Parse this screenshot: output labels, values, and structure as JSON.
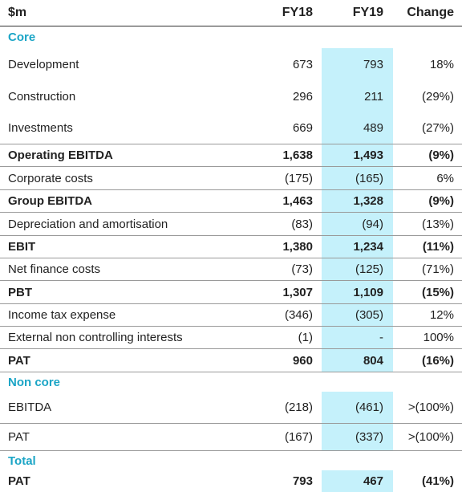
{
  "table": {
    "header": [
      "$m",
      "FY18",
      "FY19",
      "Change"
    ],
    "sections": [
      {
        "title": "Core",
        "rows": [
          {
            "cells": [
              "Development",
              "673",
              "793",
              "18%"
            ],
            "bold": false
          },
          {
            "cells": [
              "Construction",
              "296",
              "211",
              "(29%)"
            ],
            "bold": false
          },
          {
            "cells": [
              "Investments",
              "669",
              "489",
              "(27%)"
            ],
            "bold": false
          },
          {
            "cells": [
              "Operating EBITDA",
              "1,638",
              "1,493",
              "(9%)"
            ],
            "bold": true
          },
          {
            "cells": [
              "Corporate costs",
              "(175)",
              "(165)",
              "6%"
            ],
            "bold": false
          },
          {
            "cells": [
              "Group EBITDA",
              "1,463",
              "1,328",
              "(9%)"
            ],
            "bold": true
          },
          {
            "cells": [
              "Depreciation and amortisation",
              "(83)",
              "(94)",
              "(13%)"
            ],
            "bold": false
          },
          {
            "cells": [
              "EBIT",
              "1,380",
              "1,234",
              "(11%)"
            ],
            "bold": true
          },
          {
            "cells": [
              "Net finance costs",
              "(73)",
              "(125)",
              "(71%)"
            ],
            "bold": false
          },
          {
            "cells": [
              "PBT",
              "1,307",
              "1,109",
              "(15%)"
            ],
            "bold": true
          },
          {
            "cells": [
              "Income tax expense",
              "(346)",
              "(305)",
              "12%"
            ],
            "bold": false
          },
          {
            "cells": [
              "External non controlling interests",
              "(1)",
              "-",
              "100%"
            ],
            "bold": false
          },
          {
            "cells": [
              "PAT",
              "960",
              "804",
              "(16%)"
            ],
            "bold": true
          }
        ]
      },
      {
        "title": "Non core",
        "rows": [
          {
            "cells": [
              "EBITDA",
              "(218)",
              "(461)",
              ">(100%)"
            ],
            "bold": false
          },
          {
            "cells": [
              "PAT",
              "(167)",
              "(337)",
              ">(100%)"
            ],
            "bold": false
          }
        ]
      },
      {
        "title": "Total",
        "rows": [
          {
            "cells": [
              "PAT",
              "793",
              "467",
              "(41%)"
            ],
            "bold": true
          }
        ]
      }
    ]
  }
}
